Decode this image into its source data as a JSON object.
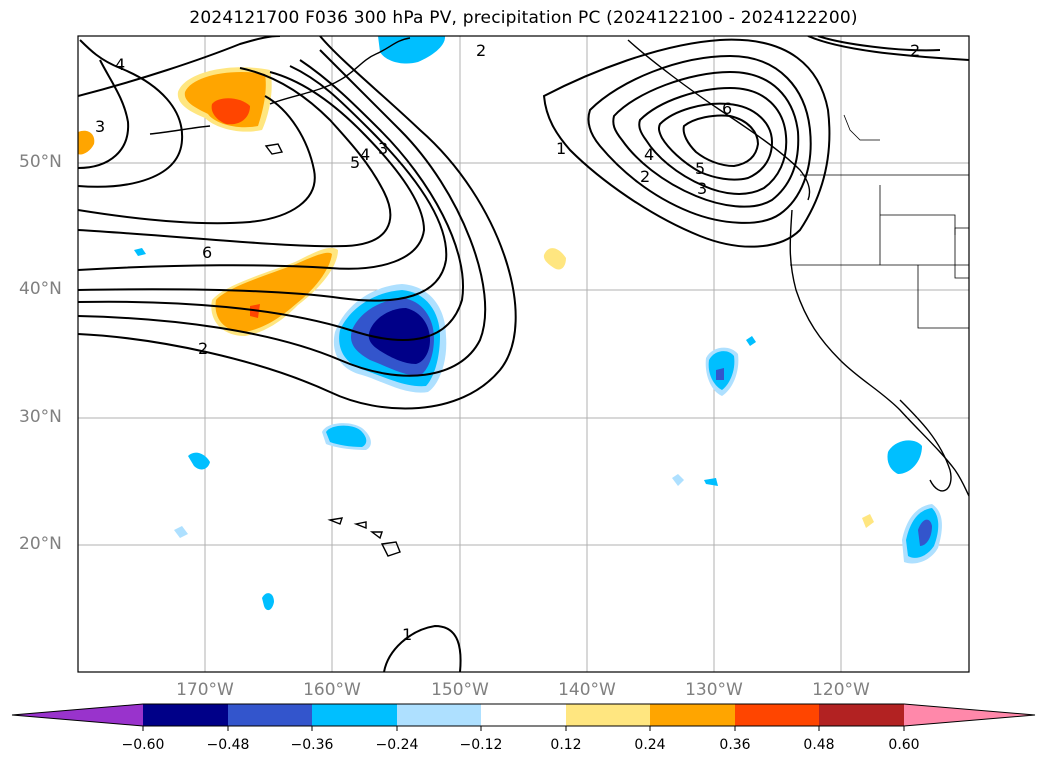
{
  "title": "2024121700 F036 300 hPa PV, precipitation PC (2024122100 - 2024122200)",
  "map": {
    "lat_labels": [
      "50°N",
      "40°N",
      "30°N",
      "20°N"
    ],
    "lon_labels": [
      "170°W",
      "160°W",
      "150°W",
      "140°W",
      "130°W",
      "120°W"
    ],
    "contour_labels": [
      "4",
      "3",
      "2",
      "4",
      "3",
      "5",
      "6",
      "2",
      "1",
      "2",
      "4",
      "5",
      "3",
      "6",
      "2",
      "1"
    ],
    "gridline_color": "#b0b0b0",
    "coastline_color": "#000000"
  },
  "colorbar": {
    "ticks": [
      "−0.60",
      "−0.48",
      "−0.36",
      "−0.24",
      "−0.12",
      "0.12",
      "0.24",
      "0.36",
      "0.48",
      "0.60"
    ],
    "colors": [
      "#9933cc",
      "#000088",
      "#3355cc",
      "#00bfff",
      "#aee0ff",
      "#ffffff",
      "#ffe680",
      "#ffa500",
      "#ff4500",
      "#b22222",
      "#ff88aa"
    ]
  }
}
